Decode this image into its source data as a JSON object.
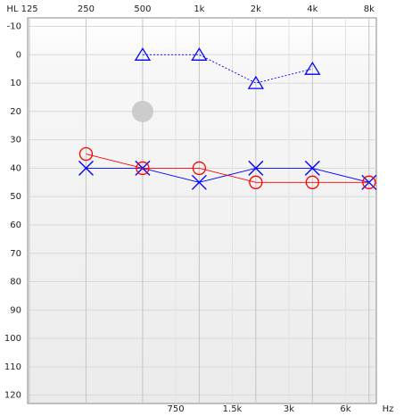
{
  "chart_data": {
    "type": "audiogram",
    "xlog": true,
    "yinverted": true,
    "grid": true,
    "xlim": [
      125,
      8750
    ],
    "ylim": [
      -13,
      122
    ],
    "xticks": [
      {
        "value": 125,
        "label": "HL 125"
      },
      250,
      500,
      {
        "value": 1000,
        "label": "1k"
      },
      {
        "value": 2000,
        "label": "2k"
      },
      {
        "value": 4000,
        "label": "4k"
      },
      {
        "value": 8000,
        "label": "8k"
      }
    ],
    "x2ticks": [
      750,
      {
        "value": 1500,
        "label": "1.5k"
      },
      {
        "value": 3000,
        "label": "3k"
      },
      {
        "value": 6000,
        "label": "6k"
      }
    ],
    "x2label": "Hz",
    "yticks": [
      -10,
      0,
      10,
      20,
      30,
      40,
      50,
      60,
      70,
      80,
      90,
      100,
      110,
      120
    ],
    "series": [
      {
        "marker": "cross",
        "color": "#0000ff",
        "line": "solid",
        "x": [
          250,
          500,
          1000,
          2000,
          4000,
          8000
        ],
        "values": [
          40,
          40,
          45,
          40,
          40,
          45
        ]
      },
      {
        "marker": "circle",
        "color": "#ff0000",
        "line": "solid",
        "x": [
          250,
          500,
          1000,
          2000,
          4000,
          8000
        ],
        "values": [
          35,
          40,
          40,
          45,
          45,
          45
        ]
      },
      {
        "marker": "triangle",
        "color": "#0000ff",
        "line": "dotted",
        "x": [
          500,
          1000,
          2000,
          4000
        ],
        "values": [
          0,
          0,
          10,
          5
        ]
      },
      {
        "marker": "dot",
        "color": "#cccccc",
        "line": "none",
        "x": [
          500
        ],
        "values": [
          20
        ]
      }
    ]
  }
}
